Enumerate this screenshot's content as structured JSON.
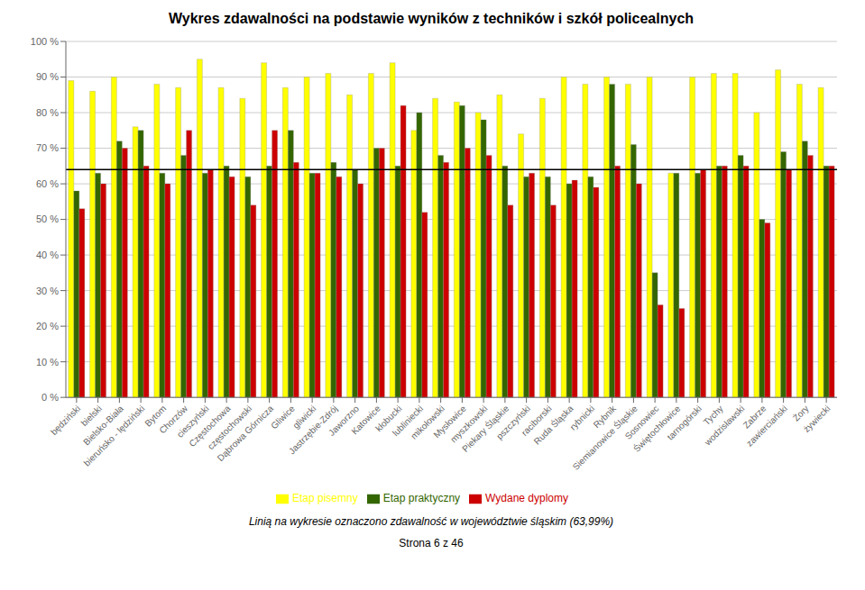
{
  "chart_data": {
    "type": "bar",
    "title": "Wykres zdawalności na podstawie wyników z techników i szkół policealnych",
    "subtitle": "Linią na wykresie oznaczono zdawalność w województwie śląskim (63,99%)",
    "footer": "Strona 6 z 46",
    "categories": [
      "będziński",
      "bielski",
      "Bielsko-Biała",
      "bieruńsko - lędziński",
      "Bytom",
      "Chorzów",
      "cieszyński",
      "Częstochowa",
      "częstochowski",
      "Dąbrowa Górnicza",
      "Gliwice",
      "gliwicki",
      "Jastrzębie-Zdrój",
      "Jaworzno",
      "Katowice",
      "kłobucki",
      "lubliniecki",
      "mikołowski",
      "Mysłowice",
      "myszkowski",
      "Piekary Śląskie",
      "pszczyński",
      "raciborski",
      "Ruda Śląska",
      "rybnicki",
      "Rybnik",
      "Siemianowice Śląskie",
      "Sosnowiec",
      "Świętochłowice",
      "tarnogórski",
      "Tychy",
      "wodzisławski",
      "Zabrze",
      "zawierciański",
      "Żory",
      "żywiecki"
    ],
    "series": [
      {
        "name": "Etap pisemny",
        "color": "#FFFF00",
        "values": [
          89,
          86,
          90,
          76,
          88,
          87,
          95,
          87,
          84,
          94,
          87,
          90,
          91,
          85,
          91,
          94,
          75,
          84,
          83,
          80,
          85,
          74,
          84,
          90,
          88,
          90,
          88,
          90,
          63,
          90,
          91,
          91,
          80,
          92,
          88,
          87
        ]
      },
      {
        "name": "Etap praktyczny",
        "color": "#336600",
        "values": [
          58,
          63,
          72,
          75,
          63,
          68,
          63,
          65,
          62,
          65,
          75,
          63,
          66,
          64,
          70,
          65,
          80,
          68,
          82,
          78,
          65,
          62,
          62,
          60,
          62,
          88,
          71,
          35,
          63,
          63,
          65,
          68,
          50,
          69,
          72,
          65
        ]
      },
      {
        "name": "Wydane dyplomy",
        "color": "#CC0000",
        "values": [
          53,
          60,
          70,
          65,
          60,
          75,
          64,
          62,
          54,
          75,
          66,
          63,
          62,
          60,
          70,
          82,
          52,
          66,
          70,
          68,
          54,
          63,
          54,
          61,
          59,
          65,
          60,
          26,
          25,
          64,
          65,
          65,
          49,
          64,
          68,
          65
        ]
      }
    ],
    "reference_line": 63.99,
    "ylim": [
      0,
      100
    ],
    "yticks": [
      {
        "value": 0,
        "label": "0 %"
      },
      {
        "value": 10,
        "label": "10 %"
      },
      {
        "value": 20,
        "label": "20 %"
      },
      {
        "value": 30,
        "label": "30 %"
      },
      {
        "value": 40,
        "label": "40 %"
      },
      {
        "value": 50,
        "label": "50 %"
      },
      {
        "value": 60,
        "label": "60 %"
      },
      {
        "value": 70,
        "label": "70 %"
      },
      {
        "value": 80,
        "label": "80 %"
      },
      {
        "value": 90,
        "label": "90 %"
      },
      {
        "value": 100,
        "label": "100 %"
      }
    ],
    "grid": true,
    "legend": "bottom"
  }
}
